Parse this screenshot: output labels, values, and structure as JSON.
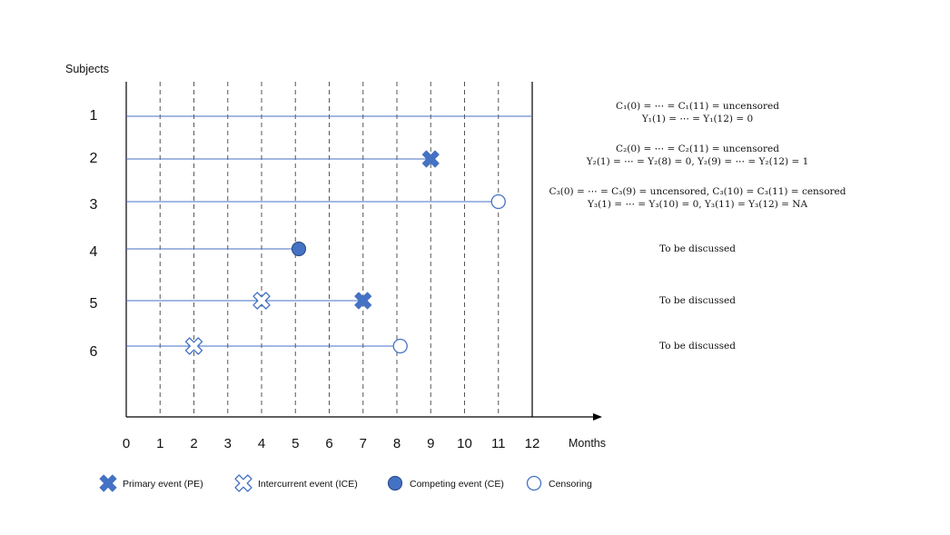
{
  "y_axis_label": "Subjects",
  "x_axis_label": "Months",
  "month_ticks": [
    "0",
    "1",
    "2",
    "3",
    "4",
    "5",
    "6",
    "7",
    "8",
    "9",
    "10",
    "11",
    "12"
  ],
  "colors": {
    "primary": "#4472c4",
    "line": "#4472c4",
    "axis": "#000000",
    "grid": "#555555"
  },
  "subjects": [
    {
      "label": "1",
      "end_month": 12,
      "events": [],
      "notes": [
        "C₁(0) = ⋯ = C₁(11) = uncensored",
        "Y₁(1) = ⋯ = Y₁(12) = 0"
      ]
    },
    {
      "label": "2",
      "end_month": 9,
      "events": [
        {
          "type": "primary",
          "month": 9
        }
      ],
      "notes": [
        "C₂(0) = ⋯ = C₂(11) = uncensored",
        "Y₂(1) = ⋯ = Y₂(8) = 0, Y₂(9) = ⋯ = Y₂(12) = 1"
      ]
    },
    {
      "label": "3",
      "end_month": 11,
      "events": [
        {
          "type": "censoring",
          "month": 11
        }
      ],
      "notes": [
        "C₃(0) = ⋯ = C₃(9) = uncensored, C₃(10) = C₃(11) = censored",
        "Y₃(1) = ⋯ = Y₃(10) = 0, Y₃(11) = Y₃(12) = NA"
      ]
    },
    {
      "label": "4",
      "end_month": 5.1,
      "events": [
        {
          "type": "competing",
          "month": 5.1
        }
      ],
      "notes": [
        "To be discussed"
      ]
    },
    {
      "label": "5",
      "end_month": 7,
      "events": [
        {
          "type": "intercurrent",
          "month": 4
        },
        {
          "type": "primary",
          "month": 7
        }
      ],
      "notes": [
        "To be discussed"
      ]
    },
    {
      "label": "6",
      "end_month": 8.1,
      "events": [
        {
          "type": "intercurrent",
          "month": 2
        },
        {
          "type": "censoring",
          "month": 8.1
        }
      ],
      "notes": [
        "To be discussed"
      ]
    }
  ],
  "legend": [
    {
      "type": "primary",
      "label": "Primary event (PE)"
    },
    {
      "type": "intercurrent",
      "label": "Intercurrent event (ICE)"
    },
    {
      "type": "competing",
      "label": "Competing event (CE)"
    },
    {
      "type": "censoring",
      "label": "Censoring"
    }
  ]
}
